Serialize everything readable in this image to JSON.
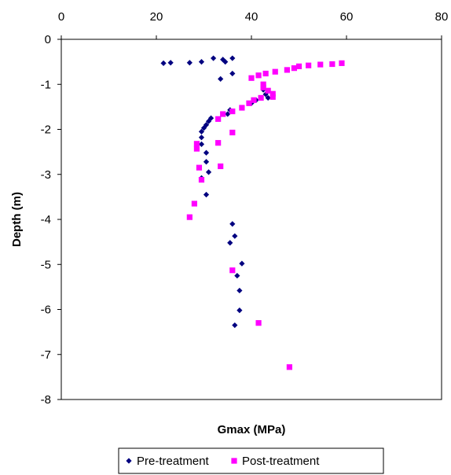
{
  "chart_data": {
    "type": "scatter",
    "xlabel": "Gmax (MPa)",
    "ylabel": "Depth (m)",
    "xlim": [
      0,
      80
    ],
    "ylim": [
      -8,
      0
    ],
    "x_ticks": [
      "0",
      "20",
      "40",
      "60",
      "80"
    ],
    "y_ticks": [
      "0",
      "-1",
      "-2",
      "-3",
      "-4",
      "-5",
      "-6",
      "-7",
      "-8"
    ],
    "x_axis_position": "top",
    "grid": false,
    "legend": {
      "placement": "bottom-center"
    },
    "series": [
      {
        "name": "Pre-treatment",
        "marker": "diamond",
        "color": "#000080",
        "points": [
          {
            "x": 21.5,
            "y": -0.53
          },
          {
            "x": 23.0,
            "y": -0.52
          },
          {
            "x": 27.0,
            "y": -0.52
          },
          {
            "x": 29.5,
            "y": -0.5
          },
          {
            "x": 32.0,
            "y": -0.42
          },
          {
            "x": 34.0,
            "y": -0.45
          },
          {
            "x": 34.5,
            "y": -0.5
          },
          {
            "x": 36.0,
            "y": -0.42
          },
          {
            "x": 36.0,
            "y": -0.76
          },
          {
            "x": 33.5,
            "y": -0.88
          },
          {
            "x": 42.5,
            "y": -1.12
          },
          {
            "x": 43.0,
            "y": -1.22
          },
          {
            "x": 43.5,
            "y": -1.3
          },
          {
            "x": 41.0,
            "y": -1.35
          },
          {
            "x": 40.0,
            "y": -1.42
          },
          {
            "x": 35.5,
            "y": -1.57
          },
          {
            "x": 35.0,
            "y": -1.66
          },
          {
            "x": 31.5,
            "y": -1.75
          },
          {
            "x": 31.0,
            "y": -1.82
          },
          {
            "x": 30.5,
            "y": -1.9
          },
          {
            "x": 30.0,
            "y": -1.97
          },
          {
            "x": 29.5,
            "y": -2.05
          },
          {
            "x": 29.5,
            "y": -2.18
          },
          {
            "x": 29.5,
            "y": -2.33
          },
          {
            "x": 30.5,
            "y": -2.52
          },
          {
            "x": 30.5,
            "y": -2.72
          },
          {
            "x": 31.0,
            "y": -2.95
          },
          {
            "x": 29.5,
            "y": -3.08
          },
          {
            "x": 30.5,
            "y": -3.45
          },
          {
            "x": 36.0,
            "y": -4.1
          },
          {
            "x": 36.5,
            "y": -4.37
          },
          {
            "x": 35.5,
            "y": -4.52
          },
          {
            "x": 38.0,
            "y": -4.98
          },
          {
            "x": 37.0,
            "y": -5.25
          },
          {
            "x": 37.5,
            "y": -5.58
          },
          {
            "x": 37.5,
            "y": -6.02
          },
          {
            "x": 36.5,
            "y": -6.35
          }
        ]
      },
      {
        "name": "Post-treatment",
        "marker": "square",
        "color": "#ff00ff",
        "points": [
          {
            "x": 59.0,
            "y": -0.53
          },
          {
            "x": 57.0,
            "y": -0.55
          },
          {
            "x": 54.5,
            "y": -0.56
          },
          {
            "x": 52.0,
            "y": -0.58
          },
          {
            "x": 50.0,
            "y": -0.6
          },
          {
            "x": 49.0,
            "y": -0.64
          },
          {
            "x": 47.5,
            "y": -0.68
          },
          {
            "x": 45.0,
            "y": -0.72
          },
          {
            "x": 43.0,
            "y": -0.76
          },
          {
            "x": 41.5,
            "y": -0.8
          },
          {
            "x": 40.0,
            "y": -0.86
          },
          {
            "x": 42.5,
            "y": -1.0
          },
          {
            "x": 42.5,
            "y": -1.07
          },
          {
            "x": 43.5,
            "y": -1.14
          },
          {
            "x": 44.5,
            "y": -1.21
          },
          {
            "x": 44.5,
            "y": -1.28
          },
          {
            "x": 42.0,
            "y": -1.3
          },
          {
            "x": 40.5,
            "y": -1.35
          },
          {
            "x": 39.5,
            "y": -1.42
          },
          {
            "x": 38.0,
            "y": -1.52
          },
          {
            "x": 36.0,
            "y": -1.6
          },
          {
            "x": 34.0,
            "y": -1.66
          },
          {
            "x": 33.0,
            "y": -1.77
          },
          {
            "x": 36.0,
            "y": -2.07
          },
          {
            "x": 33.0,
            "y": -2.3
          },
          {
            "x": 28.5,
            "y": -2.32
          },
          {
            "x": 28.5,
            "y": -2.43
          },
          {
            "x": 33.5,
            "y": -2.82
          },
          {
            "x": 29.0,
            "y": -2.85
          },
          {
            "x": 29.5,
            "y": -3.12
          },
          {
            "x": 28.0,
            "y": -3.65
          },
          {
            "x": 27.0,
            "y": -3.95
          },
          {
            "x": 36.0,
            "y": -5.13
          },
          {
            "x": 41.5,
            "y": -6.3
          },
          {
            "x": 48.0,
            "y": -7.28
          }
        ]
      }
    ]
  }
}
